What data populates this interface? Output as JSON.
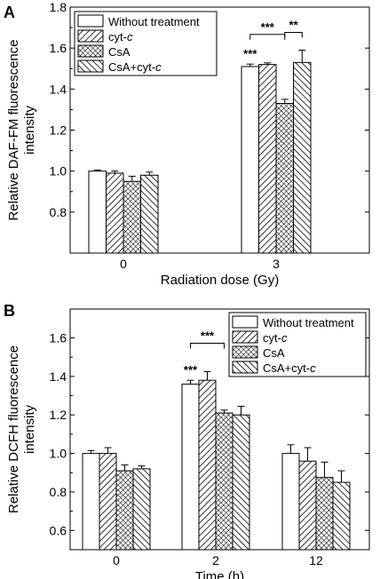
{
  "chart_data": [
    {
      "panel_label": "A",
      "type": "bar",
      "categories": [
        "0",
        "3"
      ],
      "xlabel": "Radiation dose (Gy)",
      "ylabel_lines": [
        "Relative DAF-FM fluorescence",
        "intensity"
      ],
      "ylim": [
        0.6,
        1.8
      ],
      "yticks": [
        "0.8",
        "1.0",
        "1.2",
        "1.4",
        "1.6",
        "1.8"
      ],
      "legend_position": "top-left",
      "series": [
        {
          "name": "Without treatment",
          "label_plain": "Without treatment",
          "label_italic": "",
          "pattern": "none",
          "values": [
            1.0,
            1.51
          ],
          "errors": [
            0.005,
            0.012
          ]
        },
        {
          "name": "cyt-c",
          "label_plain": "cyt-",
          "label_italic": "c",
          "pattern": "diag-forward",
          "values": [
            0.99,
            1.52
          ],
          "errors": [
            0.01,
            0.008
          ]
        },
        {
          "name": "CsA",
          "label_plain": "CsA",
          "label_italic": "",
          "pattern": "crosshatch",
          "values": [
            0.95,
            1.33
          ],
          "errors": [
            0.025,
            0.02
          ]
        },
        {
          "name": "CsA+cyt-c",
          "label_plain": "CsA+cyt-",
          "label_italic": "c",
          "pattern": "diag-back",
          "values": [
            0.98,
            1.53
          ],
          "errors": [
            0.015,
            0.06
          ]
        }
      ],
      "annotations": [
        {
          "text": "***",
          "category": 1,
          "series": 0
        },
        {
          "text": "***",
          "bracket": [
            0,
            2
          ]
        },
        {
          "text": "**",
          "bracket": [
            2,
            3
          ]
        }
      ]
    },
    {
      "panel_label": "B",
      "type": "bar",
      "categories": [
        "0",
        "2",
        "12"
      ],
      "xlabel": "Time (h)",
      "ylabel_lines": [
        "Relative DCFH fluorescence",
        "intensity"
      ],
      "ylim": [
        0.5,
        1.75
      ],
      "yticks": [
        "0.6",
        "0.8",
        "1.0",
        "1.2",
        "1.4",
        "1.6"
      ],
      "legend_position": "top-right",
      "series": [
        {
          "name": "Without treatment",
          "label_plain": "Without treatment",
          "label_italic": "",
          "pattern": "none",
          "values": [
            1.0,
            1.36,
            1.0
          ],
          "errors": [
            0.015,
            0.02,
            0.045
          ]
        },
        {
          "name": "cyt-c",
          "label_plain": "cyt-",
          "label_italic": "c",
          "pattern": "diag-forward",
          "values": [
            1.0,
            1.38,
            0.96
          ],
          "errors": [
            0.03,
            0.045,
            0.07
          ]
        },
        {
          "name": "CsA",
          "label_plain": "CsA",
          "label_italic": "",
          "pattern": "crosshatch",
          "values": [
            0.91,
            1.21,
            0.875
          ],
          "errors": [
            0.03,
            0.015,
            0.08
          ]
        },
        {
          "name": "CsA+cyt-c",
          "label_plain": "CsA+cyt-",
          "label_italic": "c",
          "pattern": "diag-back",
          "values": [
            0.92,
            1.2,
            0.85
          ],
          "errors": [
            0.015,
            0.045,
            0.06
          ]
        }
      ],
      "annotations": [
        {
          "text": "***",
          "category": 1,
          "series": 0
        },
        {
          "text": "***",
          "bracket": [
            0,
            2
          ]
        }
      ]
    }
  ]
}
